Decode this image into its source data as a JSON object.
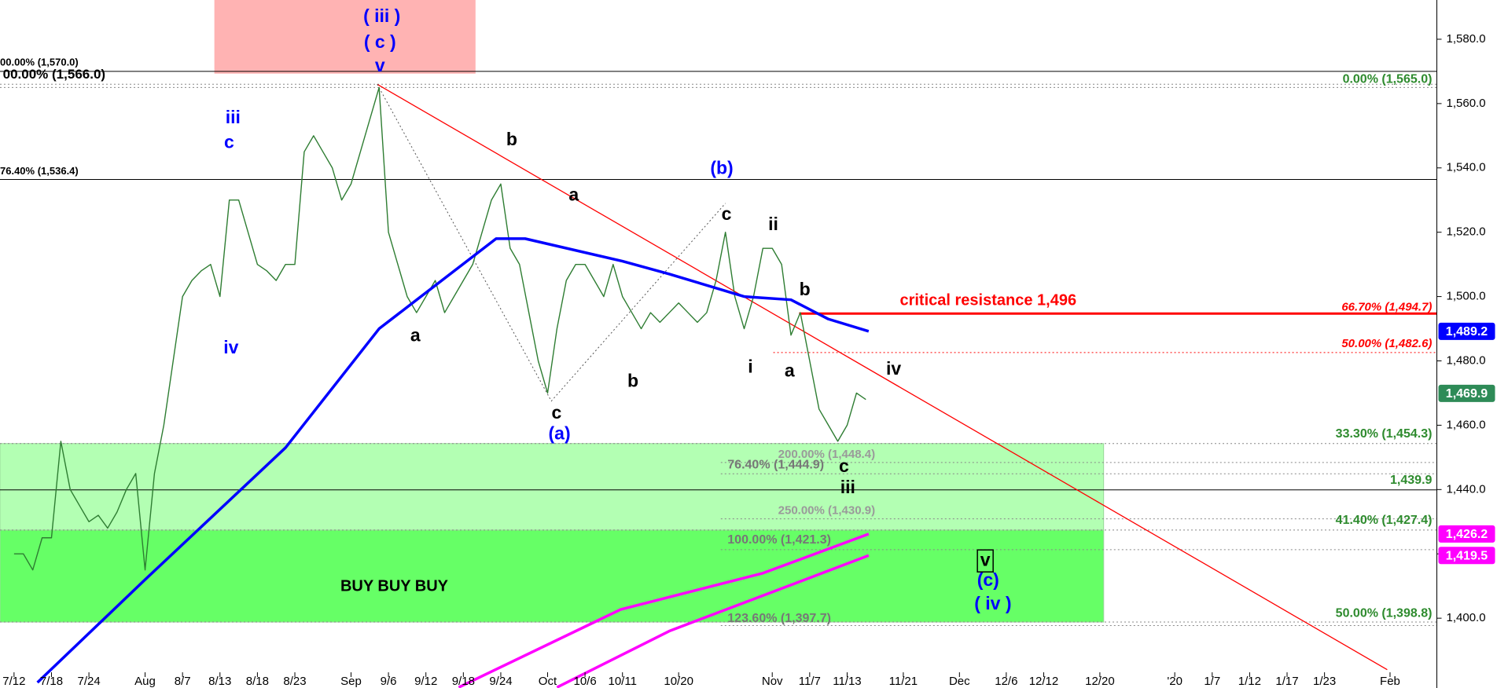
{
  "chart_data": {
    "type": "line",
    "xlim": [
      -1.5,
      152
    ],
    "ylim": [
      1378.3,
      1592.2
    ],
    "xticks": [
      {
        "value": 0,
        "label": "7/12"
      },
      {
        "value": 4,
        "label": "7/18"
      },
      {
        "value": 8,
        "label": "7/24"
      },
      {
        "value": 14,
        "label": "Aug"
      },
      {
        "value": 18,
        "label": "8/7"
      },
      {
        "value": 22,
        "label": "8/13"
      },
      {
        "value": 26,
        "label": "8/18"
      },
      {
        "value": 30,
        "label": "8/23"
      },
      {
        "value": 36,
        "label": "Sep"
      },
      {
        "value": 40,
        "label": "9/6"
      },
      {
        "value": 44,
        "label": "9/12"
      },
      {
        "value": 48,
        "label": "9/18"
      },
      {
        "value": 52,
        "label": "9/24"
      },
      {
        "value": 57,
        "label": "Oct"
      },
      {
        "value": 61,
        "label": "10/6"
      },
      {
        "value": 65,
        "label": "10/11"
      },
      {
        "value": 71,
        "label": "10/20"
      },
      {
        "value": 81,
        "label": "Nov"
      },
      {
        "value": 85,
        "label": "11/7"
      },
      {
        "value": 89,
        "label": "11/13"
      },
      {
        "value": 95,
        "label": "11/21"
      },
      {
        "value": 101,
        "label": "Dec"
      },
      {
        "value": 106,
        "label": "12/6"
      },
      {
        "value": 110,
        "label": "12/12"
      },
      {
        "value": 116,
        "label": "12/20"
      },
      {
        "value": 124,
        "label": "'20"
      },
      {
        "value": 128,
        "label": "1/7"
      },
      {
        "value": 132,
        "label": "1/12"
      },
      {
        "value": 136,
        "label": "1/17"
      },
      {
        "value": 140,
        "label": "1/23"
      },
      {
        "value": 147,
        "label": "Feb"
      }
    ],
    "yticks": [
      {
        "value": 1580,
        "label": "1,580.0"
      },
      {
        "value": 1560,
        "label": "1,560.0"
      },
      {
        "value": 1540,
        "label": "1,540.0"
      },
      {
        "value": 1520,
        "label": "1,520.0"
      },
      {
        "value": 1500,
        "label": "1,500.0"
      },
      {
        "value": 1480,
        "label": "1,480.0"
      },
      {
        "value": 1460,
        "label": "1,460.0"
      },
      {
        "value": 1440,
        "label": "1,440.0"
      },
      {
        "value": 1420,
        "label": "1,420.0"
      },
      {
        "value": 1400,
        "label": "1,400.0"
      }
    ],
    "zones": [
      {
        "x": [
          -1.5,
          116.4
        ],
        "y": [
          1398.8,
          1454.3
        ],
        "color": "#b3ffb3"
      },
      {
        "x": [
          -1.5,
          116.4
        ],
        "y": [
          1398.8,
          1427.4
        ],
        "color": "#66ff66"
      },
      {
        "x": [
          21.4,
          49.3
        ],
        "y": [
          1569.3,
          1592.2
        ],
        "color": "#ffb3b3"
      }
    ],
    "series": [
      {
        "color": "#2e7d32",
        "x": [
          0,
          1,
          2,
          3,
          4,
          5,
          6,
          7,
          8,
          9,
          10,
          11,
          12,
          13,
          14,
          15,
          16,
          17,
          18,
          19,
          20,
          21,
          22,
          23,
          24,
          25,
          26,
          27,
          28,
          29,
          30,
          31,
          32,
          33,
          34,
          35,
          36,
          37,
          38,
          39,
          40,
          41,
          42,
          43,
          44,
          45,
          46,
          47,
          48,
          49,
          50,
          51,
          52,
          53,
          54,
          55,
          56,
          57,
          58,
          59,
          60,
          61,
          62,
          63,
          64,
          65,
          66,
          67,
          68,
          69,
          70,
          71,
          72,
          73,
          74,
          75,
          76,
          77,
          78,
          79,
          80,
          81,
          82,
          83,
          84,
          85,
          86,
          87,
          88,
          89,
          90,
          91
        ],
        "values": [
          1420,
          1420,
          1415,
          1425,
          1425,
          1455,
          1440,
          1435,
          1430,
          1432,
          1428,
          1433,
          1440,
          1445,
          1415,
          1445,
          1460,
          1480,
          1500,
          1505,
          1508,
          1510,
          1500,
          1530,
          1530,
          1520,
          1510,
          1508,
          1505,
          1510,
          1510,
          1545,
          1550,
          1545,
          1540,
          1530,
          1535,
          1545,
          1555,
          1565,
          1520,
          1510,
          1500,
          1495,
          1500,
          1505,
          1495,
          1500,
          1505,
          1510,
          1520,
          1530,
          1535,
          1515,
          1510,
          1495,
          1480,
          1470,
          1490,
          1505,
          1510,
          1510,
          1505,
          1500,
          1510,
          1500,
          1495,
          1490,
          1495,
          1492,
          1495,
          1498,
          1495,
          1492,
          1495,
          1505,
          1520,
          1500,
          1490,
          1500,
          1515,
          1515,
          1510,
          1488,
          1495,
          1480,
          1465,
          1460,
          1455,
          1460,
          1470,
          1468
        ]
      },
      {
        "color": "#0000ff",
        "x": [
          2.5,
          14,
          29,
          39,
          51.5,
          54.6,
          65,
          70,
          78,
          83,
          87,
          91.3
        ],
        "values": [
          1380,
          1412,
          1453,
          1490,
          1518,
          1518,
          1511,
          1507,
          1500,
          1499,
          1493,
          1489.2
        ]
      },
      {
        "color": "#ff00ff",
        "x": [
          47.5,
          64.8,
          80,
          91.3
        ],
        "values": [
          1378.5,
          1402.7,
          1414,
          1426.2
        ]
      },
      {
        "color": "#ff00ff",
        "x": [
          58,
          70,
          91.3
        ],
        "values": [
          1378.5,
          1396,
          1419.5
        ]
      }
    ],
    "lines": [
      {
        "color": "#ff0000",
        "x": [
          38.8,
          146.7
        ],
        "values": [
          1566,
          1384
        ]
      },
      {
        "color": "#555555",
        "x": [
          38.8,
          57.4,
          76
        ],
        "values": [
          1566,
          1467.5,
          1529
        ]
      }
    ],
    "levels": [
      {
        "value": 1570,
        "label": "00.00% (1,570.0)",
        "color": "#000000"
      },
      {
        "value": 1566,
        "label": "00.00% (1,566.0)",
        "color": "#000000"
      },
      {
        "value": 1565,
        "label": "0.00% (1,565.0)",
        "color": "#2e8b2e"
      },
      {
        "value": 1536.4,
        "label": "76.40% (1,536.4)",
        "color": "#000000"
      },
      {
        "value": 1494.7,
        "label": "66.70% (1,494.7)",
        "color": "#ff0000"
      },
      {
        "value": 1482.6,
        "label": "50.00% (1,482.6)",
        "color": "#ff0000"
      },
      {
        "value": 1454.3,
        "label": "33.30% (1,454.3)",
        "color": "#2e8b2e"
      },
      {
        "value": 1448.4,
        "label": "200.00% (1,448.4)",
        "color": "#9a9a9a"
      },
      {
        "value": 1444.9,
        "label": "76.40% (1,444.9)",
        "color": "#777777"
      },
      {
        "value": 1439.9,
        "label": "1,439.9",
        "color": "#2e8b2e"
      },
      {
        "value": 1430.9,
        "label": "250.00% (1,430.9)",
        "color": "#9a9a9a"
      },
      {
        "value": 1427.4,
        "label": "41.40% (1,427.4)",
        "color": "#2e8b2e"
      },
      {
        "value": 1421.3,
        "label": "100.00% (1,421.3)",
        "color": "#777777"
      },
      {
        "value": 1398.8,
        "label": "50.00% (1,398.8)",
        "color": "#2e8b2e"
      },
      {
        "value": 1397.7,
        "label": "123.60% (1,397.7)",
        "color": "#777777"
      }
    ],
    "price_tags": [
      {
        "value": 1489.2,
        "label": "1,489.2",
        "color": "#0000ff"
      },
      {
        "value": 1469.9,
        "label": "1,469.9",
        "color": "#2e8b57"
      },
      {
        "value": 1426.2,
        "label": "1,426.2",
        "color": "#ff00ff"
      },
      {
        "value": 1419.5,
        "label": "1,419.5",
        "color": "#ff00ff"
      }
    ],
    "annotations": [
      {
        "text": "( iii )",
        "color": "#0000ff"
      },
      {
        "text": "( c )",
        "color": "#0000ff"
      },
      {
        "text": "v",
        "color": "#0000ff"
      },
      {
        "text": "iii",
        "color": "#0000ff"
      },
      {
        "text": "c",
        "color": "#0000ff"
      },
      {
        "text": "iv",
        "color": "#0000ff"
      },
      {
        "text": "b",
        "color": "#000000"
      },
      {
        "text": "a",
        "color": "#000000"
      },
      {
        "text": "(b)",
        "color": "#0000ff"
      },
      {
        "text": "c",
        "color": "#000000"
      },
      {
        "text": "ii",
        "color": "#000000"
      },
      {
        "text": "b",
        "color": "#000000"
      },
      {
        "text": "a",
        "color": "#000000"
      },
      {
        "text": "c",
        "color": "#000000"
      },
      {
        "text": "(a)",
        "color": "#0000ff"
      },
      {
        "text": "b",
        "color": "#000000"
      },
      {
        "text": "i",
        "color": "#000000"
      },
      {
        "text": "a",
        "color": "#000000"
      },
      {
        "text": "iv",
        "color": "#000000"
      },
      {
        "text": "c",
        "color": "#000000"
      },
      {
        "text": "iii",
        "color": "#000000"
      },
      {
        "text": "v",
        "color": "#000000"
      },
      {
        "text": "(c)",
        "color": "#0000ff"
      },
      {
        "text": "( iv )",
        "color": "#0000ff"
      },
      {
        "text": "critical resistance 1,496",
        "color": "#ff0000"
      },
      {
        "text": "BUY BUY BUY",
        "color": "#000000"
      }
    ]
  }
}
